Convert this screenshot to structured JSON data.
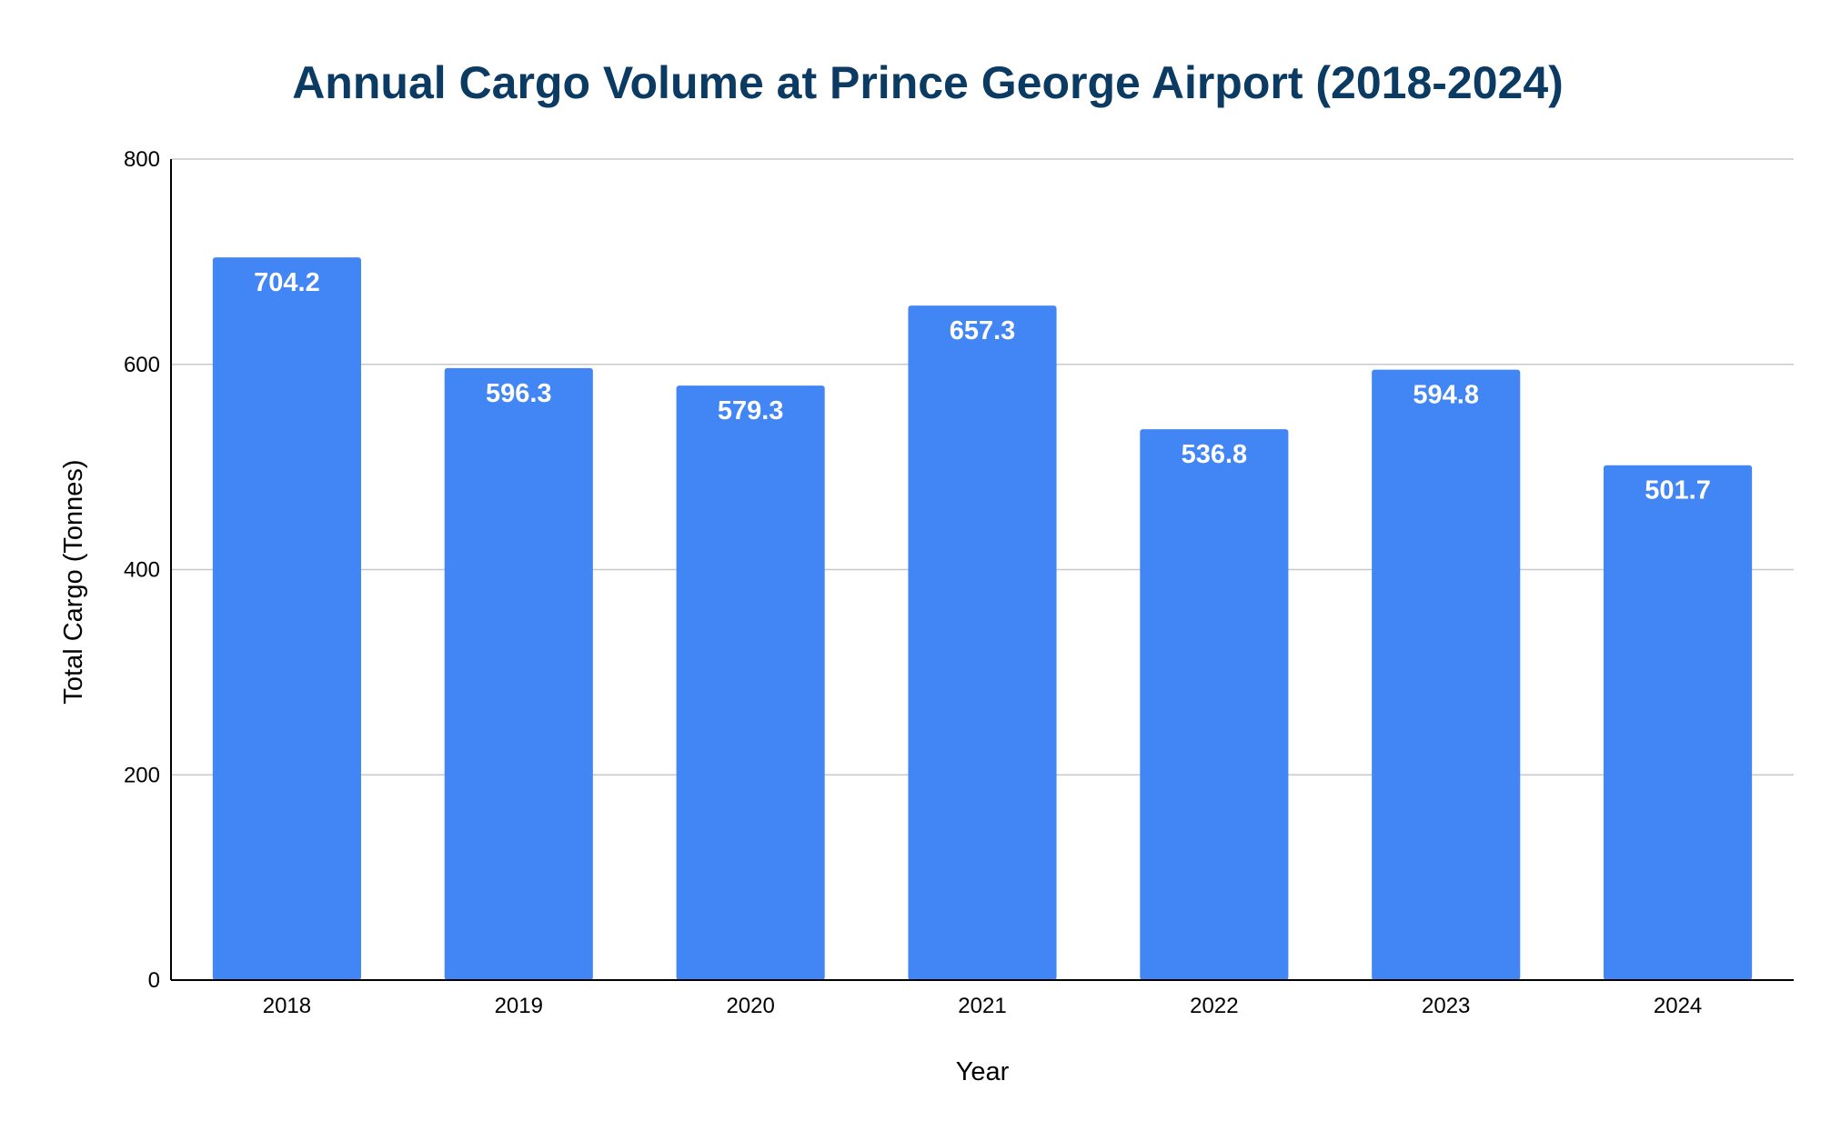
{
  "chart_data": {
    "type": "bar",
    "title": "Annual Cargo Volume at Prince George Airport (2018-2024)",
    "xlabel": "Year",
    "ylabel": "Total Cargo (Tonnes)",
    "categories": [
      "2018",
      "2019",
      "2020",
      "2021",
      "2022",
      "2023",
      "2024"
    ],
    "series": [
      {
        "values": [
          704.2,
          596.3,
          579.3,
          657.3,
          536.8,
          594.8,
          501.7
        ]
      }
    ],
    "data_labels": [
      "704.2",
      "596.3",
      "579.3",
      "657.3",
      "536.8",
      "594.8",
      "501.7"
    ],
    "ylim": [
      0,
      800
    ],
    "yticks": [
      0,
      200,
      400,
      600,
      800
    ],
    "ytick_labels": [
      "0",
      "200",
      "400",
      "600",
      "800"
    ],
    "grid": true,
    "legend": "none",
    "colors": {
      "bar": "#4285f4",
      "title": "#0b3a63",
      "gridline": "#c8c8c8",
      "axis": "#000000",
      "data_label": "#ffffff"
    }
  }
}
